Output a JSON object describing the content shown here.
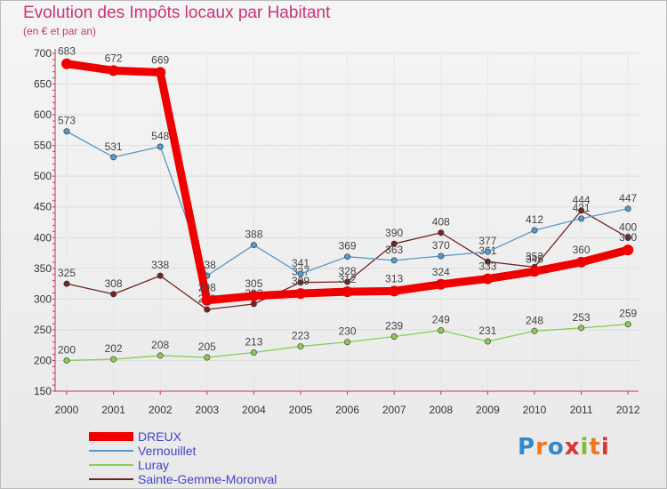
{
  "title": "Evolution des Impôts locaux par Habitant",
  "subtitle": "(en € et par an)",
  "brand": "Proxiti",
  "colors": {
    "title": "#cc3377",
    "legend_text": "#4444cc",
    "axis": "#cc3355",
    "grid": "#dddddd"
  },
  "chart_data": {
    "type": "line",
    "title": "Evolution des Impôts locaux par Habitant",
    "subtitle": "(en € et par an)",
    "xlabel": "",
    "ylabel": "",
    "x": [
      "2000",
      "2001",
      "2002",
      "2003",
      "2004",
      "2005",
      "2006",
      "2007",
      "2008",
      "2009",
      "2010",
      "2011",
      "2012"
    ],
    "ylim": [
      150,
      700
    ],
    "yticks": [
      150,
      200,
      250,
      300,
      350,
      400,
      450,
      500,
      550,
      600,
      650,
      700
    ],
    "grid": true,
    "legend_position": "bottom-left",
    "series": [
      {
        "name": "DREUX",
        "color": "#ee0000",
        "emphasis": true,
        "values": [
          683,
          672,
          669,
          298,
          305,
          309,
          312,
          313,
          324,
          333,
          345,
          360,
          380
        ]
      },
      {
        "name": "Vernouillet",
        "color": "#5599cc",
        "values": [
          573,
          531,
          548,
          338,
          388,
          341,
          369,
          363,
          370,
          377,
          412,
          431,
          447
        ]
      },
      {
        "name": "Luray",
        "color": "#88cc55",
        "values": [
          200,
          202,
          208,
          205,
          213,
          223,
          230,
          239,
          249,
          231,
          248,
          253,
          259
        ]
      },
      {
        "name": "Sainte-Gemme-Moronval",
        "color": "#772222",
        "values": [
          325,
          308,
          338,
          283,
          292,
          327,
          328,
          390,
          408,
          361,
          352,
          444,
          400
        ]
      }
    ]
  }
}
